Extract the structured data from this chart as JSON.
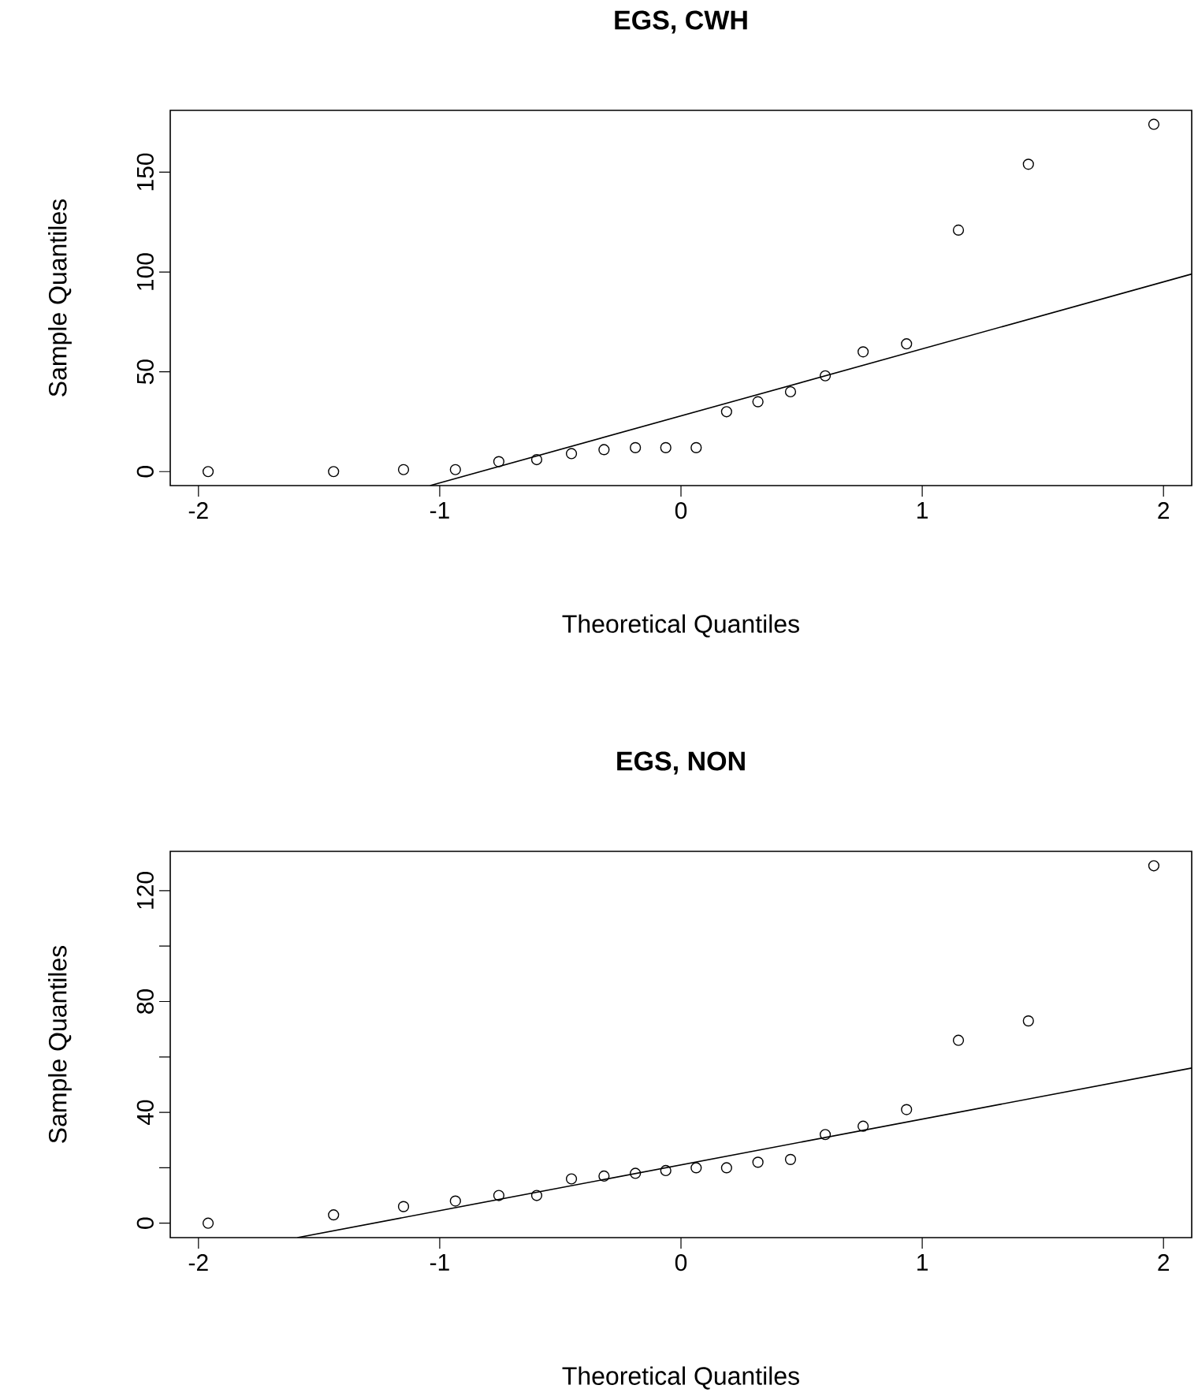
{
  "chart_data": [
    {
      "type": "scatter",
      "title": "EGS, CWH",
      "xlabel": "Theoretical Quantiles",
      "ylabel": "Sample Quantiles",
      "xlim": [
        -2.117,
        2.117
      ],
      "ylim": [
        -7,
        181
      ],
      "xticks": [
        -2,
        -1,
        0,
        1,
        2
      ],
      "yticks": [
        0,
        50,
        100,
        150
      ],
      "grid": false,
      "series": [
        {
          "type": "scatter",
          "marker": "circle",
          "color": "#000000",
          "x": [
            -1.96,
            -1.44,
            -1.15,
            -0.935,
            -0.755,
            -0.598,
            -0.454,
            -0.319,
            -0.189,
            -0.063,
            0.063,
            0.189,
            0.319,
            0.454,
            0.598,
            0.755,
            0.935,
            1.15,
            1.44,
            1.96
          ],
          "values": [
            0,
            0,
            1,
            1,
            5,
            6,
            9,
            11,
            12,
            12,
            12,
            30,
            35,
            40,
            48,
            60,
            64,
            121,
            154,
            174
          ]
        },
        {
          "type": "line",
          "marker": "none",
          "color": "#000000",
          "x": [
            -1.04,
            2.117
          ],
          "values": [
            -7,
            99
          ]
        }
      ]
    },
    {
      "type": "scatter",
      "title": "EGS, NON",
      "xlabel": "Theoretical Quantiles",
      "ylabel": "Sample Quantiles",
      "xlim": [
        -2.117,
        2.117
      ],
      "ylim": [
        -5.2,
        134.2
      ],
      "xticks": [
        -2,
        -1,
        0,
        1,
        2
      ],
      "yticks": [
        0,
        {
          "value": 20,
          "label": null
        },
        40,
        {
          "value": 60,
          "label": null
        },
        80,
        {
          "value": 100,
          "label": null
        },
        120
      ],
      "grid": false,
      "series": [
        {
          "type": "scatter",
          "marker": "circle",
          "color": "#000000",
          "x": [
            -1.96,
            -1.44,
            -1.15,
            -0.935,
            -0.755,
            -0.598,
            -0.454,
            -0.319,
            -0.189,
            -0.063,
            0.063,
            0.189,
            0.319,
            0.454,
            0.598,
            0.755,
            0.935,
            1.15,
            1.44,
            1.96
          ],
          "values": [
            0,
            3,
            6,
            8,
            10,
            10,
            16,
            17,
            18,
            19,
            20,
            20,
            22,
            23,
            32,
            35,
            41,
            66,
            73,
            129
          ]
        },
        {
          "type": "line",
          "marker": "none",
          "color": "#000000",
          "x": [
            -1.59,
            2.117
          ],
          "values": [
            -5.2,
            56
          ]
        }
      ]
    }
  ]
}
